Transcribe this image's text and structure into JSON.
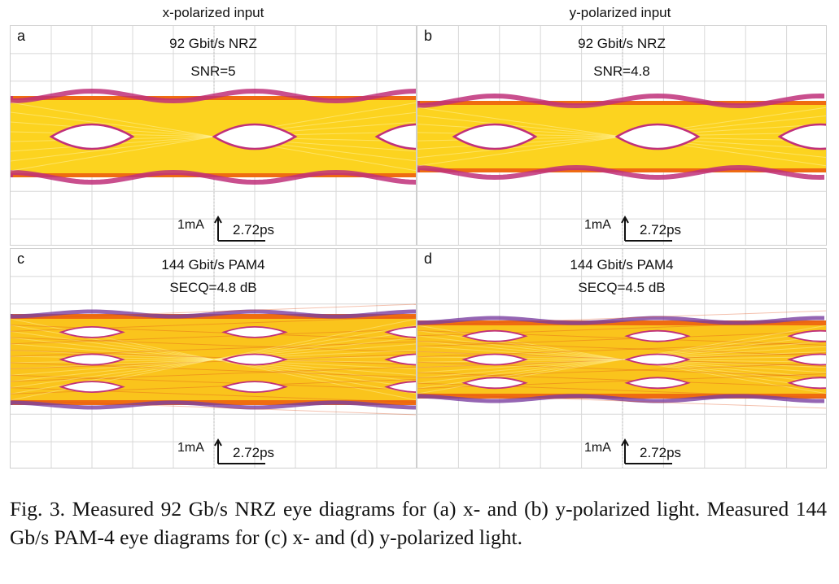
{
  "columns": {
    "left": "x-polarized input",
    "right": "y-polarized input"
  },
  "panels": [
    {
      "label": "a",
      "title1": "92 Gbit/s NRZ",
      "title2": "SNR=5",
      "format": "NRZ",
      "scale_y": "1mA",
      "scale_x": "2.72ps"
    },
    {
      "label": "b",
      "title1": "92 Gbit/s NRZ",
      "title2": "SNR=4.8",
      "format": "NRZ",
      "scale_y": "1mA",
      "scale_x": "2.72ps"
    },
    {
      "label": "c",
      "title1": "144 Gbit/s PAM4",
      "title2": "SECQ=4.8 dB",
      "format": "PAM4",
      "scale_y": "1mA",
      "scale_x": "2.72ps"
    },
    {
      "label": "d",
      "title1": "144 Gbit/s PAM4",
      "title2": "SECQ=4.5 dB",
      "format": "PAM4",
      "scale_y": "1mA",
      "scale_x": "2.72ps"
    }
  ],
  "caption": "Fig. 3.  Measured 92 Gb/s NRZ eye diagrams for (a) x- and (b) y-polarized light. Measured 144 Gb/s PAM-4 eye diagrams for (c) x- and (d) y-polarized light.",
  "colors": {
    "outer": "#c0307a",
    "mid": "#ef6c10",
    "core": "#fcd31f",
    "eye_fill": "#ffffff",
    "grid": "#d8d8d8"
  }
}
